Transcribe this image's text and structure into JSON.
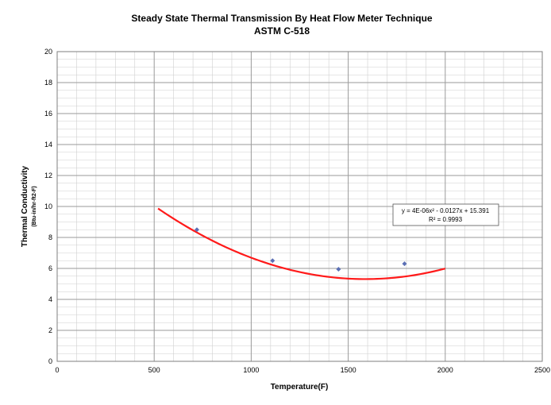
{
  "chart_data": {
    "type": "scatter",
    "title": "Steady State Thermal Transmission By Heat Flow Meter Technique",
    "subtitle": "ASTM C-518",
    "xlabel": "Temperature(F)",
    "ylabel": "Thermal Conductivity",
    "ylabel_units": "(Btu-in/hr-ft2-F)",
    "xlim": [
      0,
      2500
    ],
    "ylim": [
      0,
      20
    ],
    "x_ticks": [
      "0",
      "500",
      "1000",
      "1500",
      "2000",
      "2500"
    ],
    "y_ticks": [
      "0",
      "2",
      "4",
      "6",
      "8",
      "10",
      "12",
      "14",
      "16",
      "18",
      "20"
    ],
    "grid": true,
    "series": [
      {
        "x": [
          720,
          1110,
          1450,
          1790
        ],
        "y": [
          8.5,
          6.5,
          5.95,
          6.3
        ],
        "color": "#5b6fb5"
      }
    ],
    "trendline": {
      "type": "polynomial",
      "coefficients": [
        4e-06,
        -0.0127,
        15.391
      ],
      "x_range": [
        520,
        2000
      ],
      "color": "#ff1a1a",
      "equation": "y = 4E-06x² - 0.0127x + 15.391",
      "r_squared": "R² = 0.9993"
    }
  }
}
